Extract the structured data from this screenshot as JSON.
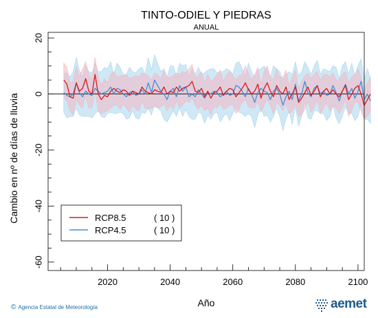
{
  "chart_data": {
    "type": "line",
    "title": "TINTO-ODIEL Y PIEDRAS",
    "subtitle": "ANUAL",
    "xlabel": "Año",
    "ylabel": "Cambio en nº de días de lluvia",
    "xlim": [
      2001,
      2102
    ],
    "ylim": [
      -63,
      22
    ],
    "x_ticks": [
      2020,
      2040,
      2060,
      2080,
      2100
    ],
    "y_ticks": [
      20,
      0,
      -20,
      -40,
      -60
    ],
    "reference_line": 0,
    "legend_position": "lower-left",
    "series": [
      {
        "name": "RCP8.5",
        "count_label": "( 10 )",
        "color": "#d7191c",
        "band_color": "#f4b6c2",
        "x_start": 2006,
        "values": [
          5,
          3.5,
          -1,
          -1.5,
          4,
          1,
          2,
          5.5,
          1,
          0,
          7,
          0,
          -2,
          -0.5,
          -1,
          1,
          2,
          1,
          0.5,
          1.5,
          1,
          -0.5,
          1,
          0.5,
          0,
          2.5,
          1,
          0.5,
          0,
          1.5,
          1,
          0.5,
          2.5,
          0,
          1,
          0.5,
          2.5,
          1,
          2,
          2.5,
          3,
          4.5,
          1,
          0.5,
          2,
          -1,
          1,
          -1.5,
          0.5,
          1,
          2.5,
          -0.5,
          1,
          2,
          1.5,
          -1,
          0.5,
          2,
          4,
          1.5,
          0,
          1,
          3.5,
          -1.5,
          2,
          4,
          1,
          -1,
          3,
          1,
          0,
          2.5,
          -2,
          0,
          2.5,
          -3,
          -1.5,
          0.5,
          2.5,
          -0.5,
          1,
          3,
          -1,
          1,
          2,
          0,
          1.5,
          0,
          -1,
          1,
          3,
          -2,
          0,
          2,
          3,
          0,
          -4,
          -2,
          0
        ],
        "band_halfwidth": [
          6,
          6,
          5,
          6,
          6,
          5,
          7,
          6,
          6,
          5,
          6,
          6,
          5,
          6,
          5,
          6,
          6,
          5,
          6,
          5,
          6,
          6,
          5,
          6,
          6,
          5,
          6,
          6,
          5,
          6,
          6,
          5,
          6,
          6,
          5,
          6,
          5,
          6,
          6,
          5,
          6,
          6,
          5,
          6,
          6,
          5,
          6,
          6,
          5,
          6,
          6,
          5,
          6,
          6,
          5,
          6,
          6,
          5,
          6,
          6,
          5,
          6,
          6,
          5,
          6,
          6,
          5,
          6,
          6,
          5,
          6,
          6,
          5,
          6,
          6,
          5,
          6,
          6,
          5,
          6,
          6,
          5,
          6,
          6,
          5,
          6,
          6,
          5,
          6,
          6,
          5,
          6,
          6,
          5,
          6,
          6,
          5,
          6,
          6
        ]
      },
      {
        "name": "RCP4.5",
        "count_label": "( 10 )",
        "color": "#3f8fdd",
        "band_color": "#a6d5ec",
        "x_start": 2006,
        "values": [
          0.5,
          -0.5,
          -1,
          0,
          4,
          0.5,
          -1,
          1,
          0,
          -0.5,
          2,
          1,
          0,
          0.5,
          1,
          2.5,
          0,
          2,
          1.5,
          0,
          -1,
          0.5,
          1,
          -0.5,
          0,
          1.5,
          0,
          4,
          0.5,
          5,
          3,
          1,
          0,
          -2,
          1,
          2,
          -1,
          3,
          1,
          2.5,
          -1,
          0,
          -1,
          1.5,
          0,
          -1.5,
          0.5,
          0,
          1,
          0.5,
          -1,
          0,
          1,
          -0.5,
          0,
          3,
          2.5,
          1,
          -1,
          2,
          0,
          -3,
          0.5,
          2,
          1,
          0.5,
          -2,
          1,
          2,
          0,
          -4,
          -1,
          1,
          -2,
          3.5,
          -2.5,
          0,
          4.5,
          0.5,
          -1,
          2,
          3,
          0,
          1,
          -0.5,
          0,
          3,
          0.5,
          -2.5,
          1,
          3.5,
          0,
          2,
          -1.5,
          1,
          4.5,
          -2,
          0,
          -2.5
        ],
        "band_halfwidth": [
          7,
          8,
          7,
          8,
          9,
          8,
          7,
          9,
          8,
          8,
          9,
          7,
          8,
          9,
          8,
          9,
          7,
          9,
          8,
          7,
          8,
          9,
          7,
          8,
          9,
          8,
          7,
          9,
          8,
          9,
          8,
          7,
          9,
          8,
          9,
          8,
          7,
          8,
          9,
          8,
          7,
          9,
          8,
          8,
          7,
          9,
          8,
          9,
          8,
          7,
          9,
          8,
          8,
          9,
          7,
          8,
          9,
          8,
          7,
          9,
          8,
          9,
          8,
          7,
          9,
          8,
          8,
          9,
          7,
          8,
          9,
          8,
          7,
          9,
          8,
          9,
          8,
          7,
          9,
          8,
          8,
          9,
          7,
          8,
          9,
          8,
          7,
          9,
          8,
          9,
          8,
          7,
          9,
          8,
          9,
          8,
          7,
          9,
          8
        ]
      }
    ]
  },
  "footer": {
    "copyright_symbol": "©",
    "agency": "Agencia Estatal de Meteorología"
  },
  "logo": {
    "word": "aemet",
    "color": "#1c5a8c"
  }
}
